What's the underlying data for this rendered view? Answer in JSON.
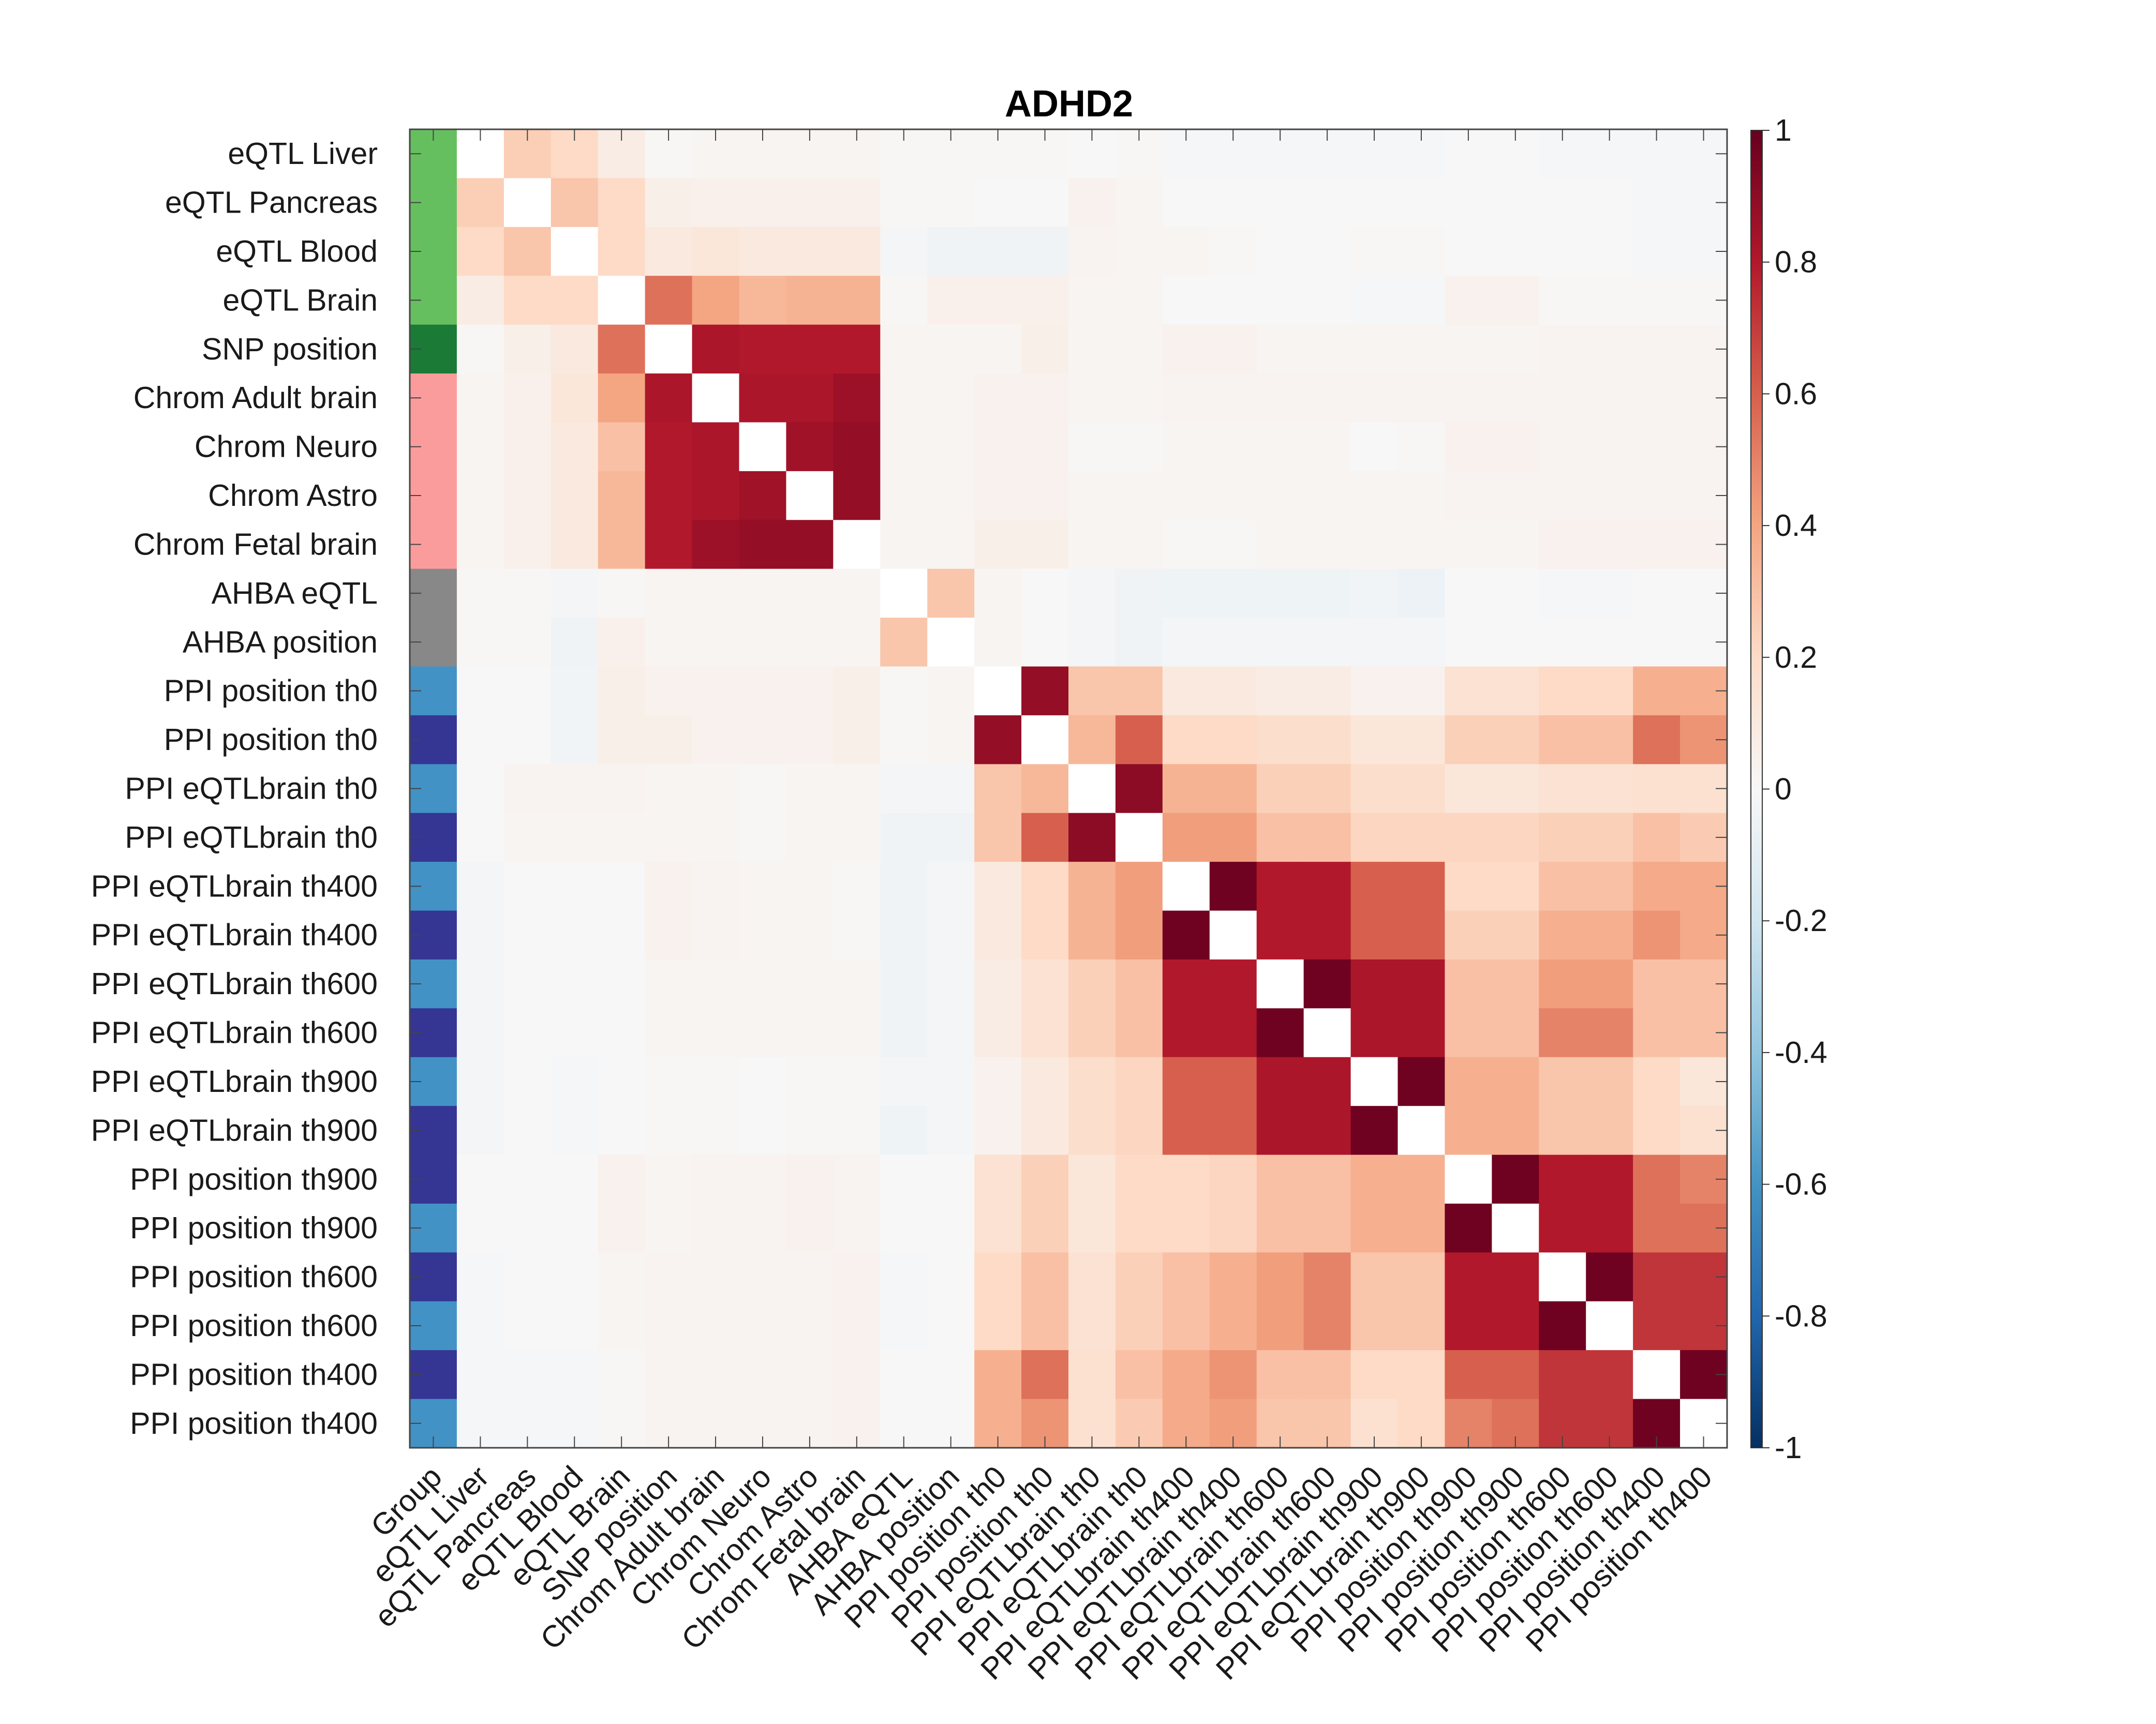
{
  "chart_data": {
    "type": "heatmap",
    "title": "ADHD2",
    "row_labels": [
      "eQTL Liver",
      "eQTL Pancreas",
      "eQTL Blood",
      "eQTL Brain",
      "SNP position",
      "Chrom Adult brain",
      "Chrom Neuro",
      "Chrom Astro",
      "Chrom Fetal brain",
      "AHBA eQTL",
      "AHBA position",
      "PPI position th0",
      "PPI position th0",
      "PPI eQTLbrain th0",
      "PPI eQTLbrain th0",
      "PPI eQTLbrain th400",
      "PPI eQTLbrain th400",
      "PPI eQTLbrain th600",
      "PPI eQTLbrain th600",
      "PPI eQTLbrain th900",
      "PPI eQTLbrain th900",
      "PPI position th900",
      "PPI position th900",
      "PPI position th600",
      "PPI position th600",
      "PPI position th400",
      "PPI position th400"
    ],
    "col_labels": [
      "Group",
      "eQTL Liver",
      "eQTL Pancreas",
      "eQTL Blood",
      "eQTL Brain",
      "SNP position",
      "Chrom Adult brain",
      "Chrom Neuro",
      "Chrom Astro",
      "Chrom Fetal brain",
      "AHBA eQTL",
      "AHBA position",
      "PPI position th0",
      "PPI position th0",
      "PPI eQTLbrain th0",
      "PPI eQTLbrain th0",
      "PPI eQTLbrain th400",
      "PPI eQTLbrain th400",
      "PPI eQTLbrain th600",
      "PPI eQTLbrain th600",
      "PPI eQTLbrain th900",
      "PPI eQTLbrain th900",
      "PPI position th900",
      "PPI position th900",
      "PPI position th600",
      "PPI position th600",
      "PPI position th400",
      "PPI position th400"
    ],
    "group_colors": [
      "#66bf5f",
      "#66bf5f",
      "#66bf5f",
      "#66bf5f",
      "#1a7a36",
      "#fb9c9c",
      "#fb9c9c",
      "#fb9c9c",
      "#fb9c9c",
      "#888888",
      "#888888",
      "#4292c6",
      "#353594",
      "#4292c6",
      "#353594",
      "#4292c6",
      "#353594",
      "#4292c6",
      "#353594",
      "#4292c6",
      "#353594",
      "#353594",
      "#4292c6",
      "#353594",
      "#4292c6",
      "#353594",
      "#4292c6"
    ],
    "values": [
      [
        1,
        0.25,
        0.2,
        0.08,
        0.01,
        0.02,
        0.02,
        0.02,
        0.02,
        0.01,
        0.01,
        0.01,
        0.01,
        0,
        0.01,
        -0.01,
        -0.01,
        -0.01,
        -0.01,
        -0.01,
        -0.01,
        0,
        0,
        -0.01,
        -0.01,
        -0.01,
        -0.01
      ],
      [
        0.25,
        1,
        0.28,
        0.2,
        0.06,
        0.05,
        0.05,
        0.05,
        0.05,
        0.01,
        0.01,
        0,
        0,
        0.04,
        0.02,
        0,
        0,
        0,
        0,
        0,
        0,
        0,
        0,
        0,
        0,
        -0.01,
        -0.01
      ],
      [
        0.2,
        0.28,
        1,
        0.2,
        0.1,
        0.12,
        0.1,
        0.1,
        0.1,
        -0.02,
        -0.04,
        -0.04,
        -0.04,
        0.03,
        0.02,
        0.02,
        0.01,
        0,
        0,
        0.01,
        0.01,
        0,
        0,
        0,
        0,
        -0.01,
        -0.01
      ],
      [
        0.08,
        0.2,
        0.2,
        1,
        0.55,
        0.4,
        0.33,
        0.35,
        0.35,
        0.01,
        0.05,
        0.05,
        0.05,
        0.02,
        0.02,
        0,
        0,
        0,
        0,
        -0.01,
        -0.01,
        0.04,
        0.04,
        0.01,
        0.01,
        0.01,
        0.01
      ],
      [
        0.01,
        0.06,
        0.1,
        0.55,
        1,
        0.82,
        0.8,
        0.8,
        0.8,
        0.02,
        0.02,
        0.02,
        0.06,
        0.02,
        0.02,
        0.04,
        0.04,
        0.02,
        0.02,
        0.02,
        0.02,
        0.02,
        0.02,
        0.03,
        0.03,
        0.03,
        0.03
      ],
      [
        0.02,
        0.05,
        0.12,
        0.4,
        0.82,
        1,
        0.82,
        0.82,
        0.86,
        0.02,
        0.02,
        0.04,
        0.04,
        0.02,
        0.02,
        0.03,
        0.03,
        0.03,
        0.03,
        0.03,
        0.03,
        0.03,
        0.03,
        0.03,
        0.03,
        0.03,
        0.03
      ],
      [
        0.02,
        0.05,
        0.1,
        0.3,
        0.8,
        0.82,
        1,
        0.85,
        0.88,
        0.02,
        0.02,
        0.04,
        0.04,
        0.01,
        0.01,
        0.02,
        0.02,
        0.02,
        0.02,
        0,
        0.01,
        0.04,
        0.04,
        0.03,
        0.03,
        0.03,
        0.03
      ],
      [
        0.02,
        0.05,
        0.1,
        0.33,
        0.8,
        0.82,
        0.85,
        1,
        0.88,
        0.02,
        0.02,
        0.04,
        0.04,
        0.02,
        0.02,
        0.02,
        0.02,
        0.02,
        0.02,
        0.02,
        0.02,
        0.03,
        0.03,
        0.03,
        0.03,
        0.03,
        0.03
      ],
      [
        0.02,
        0.05,
        0.1,
        0.33,
        0.8,
        0.86,
        0.88,
        0.88,
        1,
        0.02,
        0.02,
        0.06,
        0.06,
        0.02,
        0.02,
        0.01,
        0.01,
        0.02,
        0.02,
        0.02,
        0.02,
        0.02,
        0.02,
        0.04,
        0.04,
        0.04,
        0.04
      ],
      [
        0.01,
        0.01,
        -0.02,
        0.01,
        0.02,
        0.02,
        0.02,
        0.02,
        0.02,
        1,
        0.28,
        0.02,
        0,
        -0.02,
        -0.04,
        -0.05,
        -0.05,
        -0.05,
        -0.05,
        -0.03,
        -0.06,
        0,
        0,
        -0.01,
        -0.01,
        0,
        0
      ],
      [
        0.01,
        0.01,
        -0.04,
        0.05,
        0.02,
        0.02,
        0.02,
        0.02,
        0.02,
        0.28,
        1,
        0.02,
        0,
        -0.02,
        -0.04,
        -0.02,
        -0.02,
        -0.02,
        -0.02,
        -0.02,
        -0.02,
        0,
        0,
        0,
        0,
        0,
        0
      ],
      [
        0,
        0,
        -0.03,
        0.06,
        0.04,
        0.04,
        0.04,
        0.04,
        0.06,
        0.01,
        0.02,
        1,
        0.88,
        0.28,
        0.28,
        0.1,
        0.1,
        0.08,
        0.08,
        0.04,
        0.04,
        0.15,
        0.15,
        0.2,
        0.2,
        0.36,
        0.36
      ],
      [
        0,
        0,
        -0.03,
        0.06,
        0.06,
        0.04,
        0.04,
        0.04,
        0.06,
        0.01,
        0.02,
        0.88,
        1,
        0.33,
        0.6,
        0.2,
        0.2,
        0.18,
        0.18,
        0.12,
        0.12,
        0.24,
        0.24,
        0.3,
        0.3,
        0.55,
        0.45
      ],
      [
        0,
        0.03,
        0.03,
        0.03,
        0.02,
        0.02,
        0.01,
        0.02,
        0.02,
        -0.02,
        -0.02,
        0.28,
        0.33,
        1,
        0.9,
        0.35,
        0.35,
        0.24,
        0.24,
        0.18,
        0.18,
        0.12,
        0.12,
        0.15,
        0.15,
        0.16,
        0.16
      ],
      [
        0,
        0.02,
        0.02,
        0.02,
        0.02,
        0.02,
        0.01,
        0.02,
        0.02,
        -0.04,
        -0.04,
        0.28,
        0.6,
        0.9,
        1,
        0.42,
        0.42,
        0.3,
        0.3,
        0.22,
        0.22,
        0.22,
        0.22,
        0.24,
        0.24,
        0.3,
        0.26
      ],
      [
        -0.02,
        0,
        0,
        0,
        0.04,
        0.03,
        0.02,
        0.02,
        0.01,
        -0.04,
        -0.02,
        0.1,
        0.2,
        0.35,
        0.42,
        1,
        0.98,
        0.8,
        0.8,
        0.6,
        0.6,
        0.2,
        0.2,
        0.3,
        0.3,
        0.38,
        0.38
      ],
      [
        -0.02,
        0,
        0,
        0,
        0.04,
        0.03,
        0.02,
        0.02,
        0.01,
        -0.04,
        -0.02,
        0.1,
        0.2,
        0.35,
        0.42,
        0.98,
        1,
        0.8,
        0.8,
        0.6,
        0.6,
        0.24,
        0.24,
        0.36,
        0.36,
        0.45,
        0.38
      ],
      [
        -0.02,
        0,
        0,
        0,
        0.02,
        0.02,
        0.02,
        0.02,
        0.02,
        -0.04,
        -0.02,
        0.08,
        0.15,
        0.24,
        0.3,
        0.8,
        0.8,
        1,
        0.98,
        0.82,
        0.82,
        0.3,
        0.3,
        0.42,
        0.42,
        0.3,
        0.3
      ],
      [
        -0.02,
        0,
        0,
        0,
        0.02,
        0.02,
        0.02,
        0.02,
        0.02,
        -0.04,
        -0.02,
        0.08,
        0.15,
        0.24,
        0.3,
        0.8,
        0.8,
        0.98,
        1,
        0.82,
        0.82,
        0.3,
        0.3,
        0.5,
        0.5,
        0.3,
        0.3
      ],
      [
        -0.02,
        0,
        -0.01,
        0,
        0.01,
        0.01,
        0,
        0.01,
        0.01,
        -0.02,
        -0.02,
        0.04,
        0.1,
        0.18,
        0.22,
        0.6,
        0.6,
        0.82,
        0.82,
        1,
        0.98,
        0.36,
        0.36,
        0.28,
        0.28,
        0.2,
        0.12
      ],
      [
        -0.02,
        0,
        -0.01,
        0,
        0.01,
        0.01,
        0,
        0.01,
        0.01,
        -0.05,
        -0.02,
        0.04,
        0.1,
        0.18,
        0.22,
        0.6,
        0.6,
        0.82,
        0.82,
        0.98,
        1,
        0.36,
        0.36,
        0.28,
        0.28,
        0.2,
        0.16
      ],
      [
        0,
        0,
        0,
        0.04,
        0.02,
        0.03,
        0.03,
        0.04,
        0.03,
        0,
        0,
        0.15,
        0.24,
        0.12,
        0.2,
        0.2,
        0.22,
        0.3,
        0.3,
        0.36,
        0.36,
        1,
        0.98,
        0.8,
        0.8,
        0.55,
        0.5
      ],
      [
        0,
        0,
        0,
        0.04,
        0.02,
        0.03,
        0.03,
        0.04,
        0.03,
        0,
        0,
        0.15,
        0.24,
        0.12,
        0.2,
        0.2,
        0.22,
        0.3,
        0.3,
        0.36,
        0.36,
        0.98,
        1,
        0.8,
        0.8,
        0.55,
        0.55
      ],
      [
        -0.01,
        0,
        0,
        0.02,
        0.03,
        0.03,
        0.03,
        0.03,
        0.04,
        -0.01,
        0,
        0.2,
        0.3,
        0.15,
        0.24,
        0.3,
        0.36,
        0.42,
        0.5,
        0.28,
        0.28,
        0.8,
        0.8,
        1,
        0.98,
        0.72,
        0.72
      ],
      [
        -0.01,
        0,
        0,
        0.02,
        0.03,
        0.03,
        0.03,
        0.03,
        0.04,
        -0.01,
        0,
        0.2,
        0.3,
        0.15,
        0.24,
        0.3,
        0.36,
        0.42,
        0.5,
        0.28,
        0.28,
        0.8,
        0.8,
        0.98,
        1,
        0.72,
        0.72
      ],
      [
        -0.01,
        -0.01,
        -0.01,
        0.01,
        0.03,
        0.03,
        0.03,
        0.03,
        0.04,
        0,
        0,
        0.36,
        0.55,
        0.16,
        0.3,
        0.38,
        0.45,
        0.3,
        0.3,
        0.2,
        0.2,
        0.6,
        0.6,
        0.72,
        0.72,
        1,
        0.98
      ],
      [
        -0.01,
        -0.01,
        -0.01,
        0.01,
        0.03,
        0.03,
        0.03,
        0.03,
        0.04,
        0,
        0,
        0.36,
        0.45,
        0.16,
        0.26,
        0.38,
        0.42,
        0.28,
        0.28,
        0.16,
        0.2,
        0.5,
        0.55,
        0.72,
        0.72,
        0.98,
        1
      ]
    ],
    "colorbar": {
      "ticks": [
        "1",
        "0.8",
        "0.6",
        "0.4",
        "0.2",
        "0",
        "-0.2",
        "-0.4",
        "-0.6",
        "-0.8",
        "-1"
      ],
      "range": [
        -1,
        1
      ],
      "colormap": [
        [
          -1,
          "#053061"
        ],
        [
          -0.8,
          "#2166ac"
        ],
        [
          -0.6,
          "#4393c3"
        ],
        [
          -0.4,
          "#92c5de"
        ],
        [
          -0.2,
          "#d1e5f0"
        ],
        [
          0,
          "#f7f7f7"
        ],
        [
          0.2,
          "#fddbc7"
        ],
        [
          0.4,
          "#f4a582"
        ],
        [
          0.6,
          "#d6604d"
        ],
        [
          0.8,
          "#b2182b"
        ],
        [
          1,
          "#67001f"
        ]
      ]
    },
    "diagonal_color": "#ffffff",
    "grid": false
  }
}
